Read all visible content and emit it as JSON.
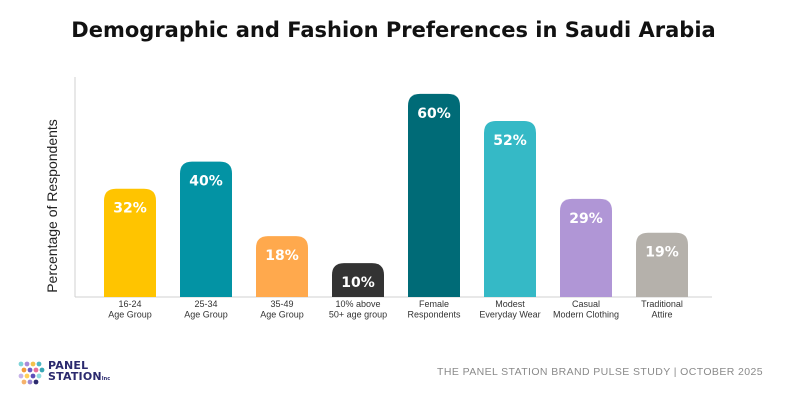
{
  "title": "Demographic and Fashion Preferences in Saudi Arabia",
  "footer": "THE PANEL STATION BRAND PULSE STUDY | OCTOBER 2025",
  "logo": {
    "line1": "PANEL",
    "line2": "STATION",
    "suffix": "Inc"
  },
  "chart_data": {
    "type": "bar",
    "title": "Demographic and Fashion Preferences in Saudi Arabia",
    "ylabel": "Percentage of Respondents",
    "xlabel": "",
    "ylim": [
      0,
      65
    ],
    "grid": false,
    "categories": [
      [
        "16-24",
        "Age Group"
      ],
      [
        "25-34",
        "Age Group"
      ],
      [
        "35-49",
        "Age Group"
      ],
      [
        "10% above",
        "50+ age group"
      ],
      [
        "Female",
        "Respondents"
      ],
      [
        "Modest",
        "Everyday Wear"
      ],
      [
        "Casual",
        "Modern Clothing"
      ],
      [
        "Traditional",
        "Attire"
      ]
    ],
    "values": [
      32,
      40,
      18,
      10,
      60,
      52,
      29,
      19
    ],
    "data_labels": [
      "32%",
      "40%",
      "18%",
      "10%",
      "60%",
      "52%",
      "29%",
      "19%"
    ],
    "colors": [
      "#ffc400",
      "#0393a4",
      "#ffa94d",
      "#333333",
      "#006b77",
      "#35b9c6",
      "#b096d6",
      "#b5b1ab"
    ],
    "axis_color": "#d0d0d0"
  }
}
